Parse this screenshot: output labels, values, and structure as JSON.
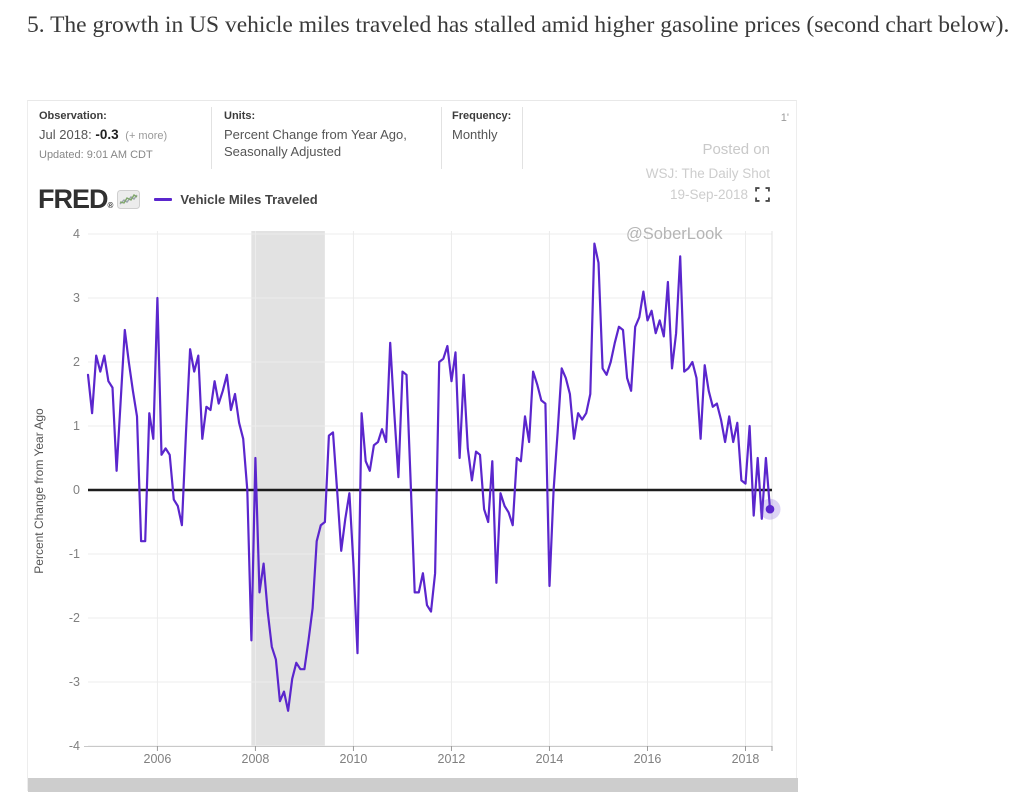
{
  "page": {
    "heading": "5. The growth in US vehicle miles traveled has stalled amid higher gasoline prices (second chart below)."
  },
  "fred_header": {
    "observation_label": "Observation:",
    "observation_date": "Jul 2018:",
    "observation_value": "-0.3",
    "observation_more": "(+ more)",
    "updated": "Updated: 9:01 AM CDT",
    "units_label": "Units:",
    "units_value": "Percent Change from Year Ago, Seasonally Adjusted",
    "frequency_label": "Frequency:",
    "frequency_value": "Monthly",
    "corner_text": "1'"
  },
  "watermark": {
    "posted_on": "Posted on",
    "source": "WSJ: The Daily Shot",
    "date": "19-Sep-2018",
    "handle": "@SoberLook"
  },
  "branding": {
    "logo": "FRED",
    "registered_mark": "®",
    "legend_label": "Vehicle Miles Traveled"
  },
  "colors": {
    "line": "#5b26cd",
    "marker_halo": "rgba(113,74,214,0.24)",
    "zero_line": "#1c1c1c",
    "grid": "#ececec",
    "recession_band": "#e2e2e2",
    "axis_text": "#808080",
    "axis_line": "#c9c9c9",
    "tick_mark": "#9a9a9a",
    "plot_border": "#e3e3e3",
    "bottom_bar": "#cdcdcd"
  },
  "chart_data": {
    "type": "line",
    "title": "Vehicle Miles Traveled",
    "ylabel": "Percent Change from Year Ago",
    "units": "Percent Change from Year Ago, Seasonally Adjusted",
    "frequency": "Monthly",
    "start": "2004-08",
    "end": "2018-07",
    "x_ticks": [
      2006,
      2008,
      2010,
      2012,
      2014,
      2016,
      2018
    ],
    "y_ticks": [
      4,
      3,
      2,
      1,
      0,
      -1,
      -2,
      -3,
      -4
    ],
    "ylim": [
      -4,
      4
    ],
    "grid": true,
    "recession_band": {
      "start": "2007-12",
      "end": "2009-06"
    },
    "last_observation": {
      "date": "Jul 2018",
      "value": -0.3
    },
    "values": [
      1.8,
      1.2,
      2.1,
      1.85,
      2.1,
      1.7,
      1.6,
      0.3,
      1.4,
      2.5,
      2.0,
      1.55,
      1.15,
      -0.8,
      -0.8,
      1.2,
      0.8,
      3.0,
      0.55,
      0.65,
      0.55,
      -0.15,
      -0.25,
      -0.55,
      0.9,
      2.2,
      1.85,
      2.1,
      0.8,
      1.3,
      1.25,
      1.7,
      1.35,
      1.55,
      1.8,
      1.25,
      1.5,
      1.05,
      0.8,
      0.0,
      -2.35,
      0.5,
      -1.6,
      -1.15,
      -1.9,
      -2.45,
      -2.65,
      -3.3,
      -3.15,
      -3.45,
      -2.95,
      -2.7,
      -2.8,
      -2.8,
      -2.35,
      -1.85,
      -0.8,
      -0.55,
      -0.5,
      0.85,
      0.9,
      0.0,
      -0.95,
      -0.45,
      -0.05,
      -1.15,
      -2.55,
      1.2,
      0.45,
      0.3,
      0.7,
      0.75,
      0.95,
      0.75,
      2.3,
      1.2,
      0.2,
      1.85,
      1.8,
      0.15,
      -1.6,
      -1.6,
      -1.3,
      -1.8,
      -1.9,
      -1.3,
      2.0,
      2.05,
      2.25,
      1.7,
      2.15,
      0.5,
      1.8,
      0.65,
      0.15,
      0.6,
      0.55,
      -0.3,
      -0.5,
      0.45,
      -1.45,
      -0.05,
      -0.25,
      -0.35,
      -0.55,
      0.5,
      0.45,
      1.15,
      0.75,
      1.85,
      1.65,
      1.4,
      1.35,
      -1.5,
      0.0,
      0.9,
      1.9,
      1.75,
      1.5,
      0.8,
      1.2,
      1.1,
      1.2,
      1.5,
      3.85,
      3.55,
      1.9,
      1.8,
      2.0,
      2.3,
      2.55,
      2.5,
      1.75,
      1.55,
      2.55,
      2.7,
      3.1,
      2.65,
      2.8,
      2.45,
      2.65,
      2.4,
      3.25,
      1.9,
      2.45,
      3.65,
      1.85,
      1.9,
      2.0,
      1.75,
      0.8,
      1.95,
      1.55,
      1.3,
      1.35,
      1.1,
      0.75,
      1.15,
      0.75,
      1.05,
      0.15,
      0.1,
      1.0,
      -0.4,
      0.5,
      -0.45,
      0.5,
      -0.3
    ]
  }
}
